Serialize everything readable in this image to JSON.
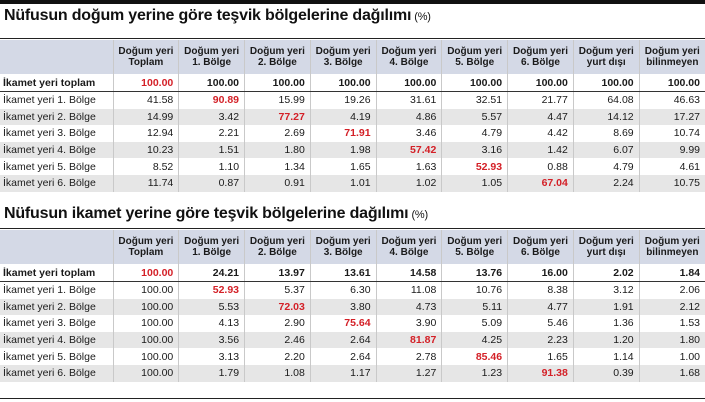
{
  "tables": [
    {
      "title": "Nüfusun doğum yerine göre teşvik bölgelerine dağılımı",
      "unit": "(%)",
      "columns": [
        [
          "",
          ""
        ],
        [
          "Doğum yeri",
          "Toplam"
        ],
        [
          "Doğum yeri",
          "1. Bölge"
        ],
        [
          "Doğum yeri",
          "2. Bölge"
        ],
        [
          "Doğum yeri",
          "3. Bölge"
        ],
        [
          "Doğum yeri",
          "4. Bölge"
        ],
        [
          "Doğum yeri",
          "5. Bölge"
        ],
        [
          "Doğum yeri",
          "6. Bölge"
        ],
        [
          "Doğum yeri",
          "yurt dışı"
        ],
        [
          "Doğum yeri",
          "bilinmeyen"
        ]
      ],
      "rows": [
        {
          "label": "İkamet yeri toplam",
          "values": [
            "100.00",
            "100.00",
            "100.00",
            "100.00",
            "100.00",
            "100.00",
            "100.00",
            "100.00",
            "100.00"
          ],
          "highlight": 0
        },
        {
          "label": "İkamet yeri 1. Bölge",
          "values": [
            "41.58",
            "90.89",
            "15.99",
            "19.26",
            "31.61",
            "32.51",
            "21.77",
            "64.08",
            "46.63"
          ],
          "highlight": 1
        },
        {
          "label": "İkamet yeri 2. Bölge",
          "values": [
            "14.99",
            "3.42",
            "77.27",
            "4.19",
            "4.86",
            "5.57",
            "4.47",
            "14.12",
            "17.27"
          ],
          "highlight": 2
        },
        {
          "label": "İkamet yeri 3. Bölge",
          "values": [
            "12.94",
            "2.21",
            "2.69",
            "71.91",
            "3.46",
            "4.79",
            "4.42",
            "8.69",
            "10.74"
          ],
          "highlight": 3
        },
        {
          "label": "İkamet yeri 4. Bölge",
          "values": [
            "10.23",
            "1.51",
            "1.80",
            "1.98",
            "57.42",
            "3.16",
            "1.42",
            "6.07",
            "9.99"
          ],
          "highlight": 4
        },
        {
          "label": "İkamet yeri 5. Bölge",
          "values": [
            "8.52",
            "1.10",
            "1.34",
            "1.65",
            "1.63",
            "52.93",
            "0.88",
            "4.79",
            "4.61"
          ],
          "highlight": 5
        },
        {
          "label": "İkamet yeri 6. Bölge",
          "values": [
            "11.74",
            "0.87",
            "0.91",
            "1.01",
            "1.02",
            "1.05",
            "67.04",
            "2.24",
            "10.75"
          ],
          "highlight": 6
        }
      ]
    },
    {
      "title": "Nüfusun ikamet yerine göre teşvik bölgelerine dağılımı",
      "unit": "(%)",
      "columns": [
        [
          "",
          ""
        ],
        [
          "Doğum yeri",
          "Toplam"
        ],
        [
          "Doğum yeri",
          "1. Bölge"
        ],
        [
          "Doğum yeri",
          "2. Bölge"
        ],
        [
          "Doğum yeri",
          "3. Bölge"
        ],
        [
          "Doğum yeri",
          "4. Bölge"
        ],
        [
          "Doğum yeri",
          "5. Bölge"
        ],
        [
          "Doğum yeri",
          "6. Bölge"
        ],
        [
          "Doğum yeri",
          "yurt dışı"
        ],
        [
          "Doğum yeri",
          "bilinmeyen"
        ]
      ],
      "rows": [
        {
          "label": "İkamet yeri toplam",
          "values": [
            "100.00",
            "24.21",
            "13.97",
            "13.61",
            "14.58",
            "13.76",
            "16.00",
            "2.02",
            "1.84"
          ],
          "highlight": 0
        },
        {
          "label": "İkamet yeri 1. Bölge",
          "values": [
            "100.00",
            "52.93",
            "5.37",
            "6.30",
            "11.08",
            "10.76",
            "8.38",
            "3.12",
            "2.06"
          ],
          "highlight": 1
        },
        {
          "label": "İkamet yeri 2. Bölge",
          "values": [
            "100.00",
            "5.53",
            "72.03",
            "3.80",
            "4.73",
            "5.11",
            "4.77",
            "1.91",
            "2.12"
          ],
          "highlight": 2
        },
        {
          "label": "İkamet yeri 3. Bölge",
          "values": [
            "100.00",
            "4.13",
            "2.90",
            "75.64",
            "3.90",
            "5.09",
            "5.46",
            "1.36",
            "1.53"
          ],
          "highlight": 3
        },
        {
          "label": "İkamet yeri 4. Bölge",
          "values": [
            "100.00",
            "3.56",
            "2.46",
            "2.64",
            "81.87",
            "4.25",
            "2.23",
            "1.20",
            "1.80"
          ],
          "highlight": 4
        },
        {
          "label": "İkamet yeri 5. Bölge",
          "values": [
            "100.00",
            "3.13",
            "2.20",
            "2.64",
            "2.78",
            "85.46",
            "1.65",
            "1.14",
            "1.00"
          ],
          "highlight": 5
        },
        {
          "label": "İkamet yeri 6. Bölge",
          "values": [
            "100.00",
            "1.79",
            "1.08",
            "1.17",
            "1.27",
            "1.23",
            "91.38",
            "0.39",
            "1.68"
          ],
          "highlight": 6
        }
      ]
    }
  ],
  "colors": {
    "highlight": "#d42027",
    "header_bg": "#d4d9e6",
    "row_alt": "#e6e6e6"
  }
}
